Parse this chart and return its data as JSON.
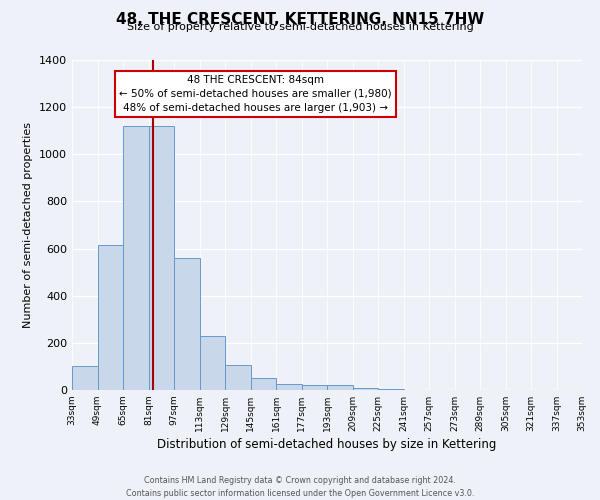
{
  "title": "48, THE CRESCENT, KETTERING, NN15 7HW",
  "subtitle": "Size of property relative to semi-detached houses in Kettering",
  "xlabel": "Distribution of semi-detached houses by size in Kettering",
  "ylabel": "Number of semi-detached properties",
  "bin_edges": [
    33,
    49,
    65,
    81,
    97,
    113,
    129,
    145,
    161,
    177,
    193,
    209,
    225,
    241,
    257,
    273,
    289,
    305,
    321,
    337,
    353
  ],
  "bar_heights": [
    100,
    615,
    1120,
    1120,
    560,
    230,
    105,
    50,
    25,
    20,
    20,
    10,
    5,
    0,
    0,
    0,
    0,
    0,
    0,
    0
  ],
  "bar_color": "#c8d8ea",
  "bar_edge_color": "#6699cc",
  "property_size": 84,
  "vline_color": "#aa0000",
  "annotation_title": "48 THE CRESCENT: 84sqm",
  "annotation_line1": "← 50% of semi-detached houses are smaller (1,980)",
  "annotation_line2": "48% of semi-detached houses are larger (1,903) →",
  "annotation_box_facecolor": "#ffffff",
  "annotation_box_edgecolor": "#cc0000",
  "ylim": [
    0,
    1400
  ],
  "yticks": [
    0,
    200,
    400,
    600,
    800,
    1000,
    1200,
    1400
  ],
  "tick_labels": [
    "33sqm",
    "49sqm",
    "65sqm",
    "81sqm",
    "97sqm",
    "113sqm",
    "129sqm",
    "145sqm",
    "161sqm",
    "177sqm",
    "193sqm",
    "209sqm",
    "225sqm",
    "241sqm",
    "257sqm",
    "273sqm",
    "289sqm",
    "305sqm",
    "321sqm",
    "337sqm",
    "353sqm"
  ],
  "footer1": "Contains HM Land Registry data © Crown copyright and database right 2024.",
  "footer2": "Contains public sector information licensed under the Open Government Licence v3.0.",
  "bg_color": "#eef2f8",
  "plot_bg_color": "#eef2f8"
}
